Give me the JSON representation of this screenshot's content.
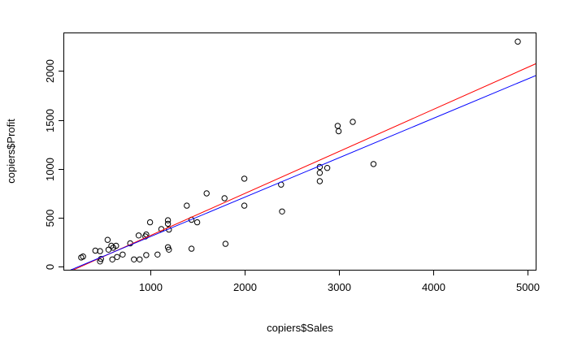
{
  "chart_data": {
    "type": "scatter",
    "title": "",
    "xlabel": "copiers$Sales",
    "ylabel": "copiers$Profit",
    "xlim": [
      90,
      5090
    ],
    "ylim": [
      -30,
      2385
    ],
    "x_ticks": [
      1000,
      2000,
      3000,
      4000,
      5000
    ],
    "y_ticks": [
      0,
      500,
      1000,
      1500,
      2000
    ],
    "x_tick_labels": [
      "1000",
      "2000",
      "3000",
      "4000",
      "5000"
    ],
    "y_tick_labels": [
      "0",
      "500",
      "1000",
      "1500",
      "2000"
    ],
    "grid": false,
    "series": [
      {
        "points": [
          [
            270,
            95
          ],
          [
            290,
            105
          ],
          [
            420,
            165
          ],
          [
            470,
            160
          ],
          [
            470,
            55
          ],
          [
            480,
            80
          ],
          [
            550,
            275
          ],
          [
            560,
            175
          ],
          [
            590,
            215
          ],
          [
            600,
            75
          ],
          [
            610,
            195
          ],
          [
            640,
            215
          ],
          [
            650,
            100
          ],
          [
            710,
            125
          ],
          [
            790,
            240
          ],
          [
            830,
            75
          ],
          [
            880,
            320
          ],
          [
            890,
            75
          ],
          [
            950,
            310
          ],
          [
            960,
            330
          ],
          [
            960,
            120
          ],
          [
            1000,
            455
          ],
          [
            1080,
            125
          ],
          [
            1120,
            385
          ],
          [
            1190,
            440
          ],
          [
            1190,
            475
          ],
          [
            1190,
            200
          ],
          [
            1200,
            380
          ],
          [
            1200,
            175
          ],
          [
            1390,
            625
          ],
          [
            1440,
            480
          ],
          [
            1440,
            185
          ],
          [
            1500,
            455
          ],
          [
            1600,
            750
          ],
          [
            1790,
            700
          ],
          [
            1800,
            235
          ],
          [
            2000,
            900
          ],
          [
            2000,
            625
          ],
          [
            2390,
            840
          ],
          [
            2400,
            565
          ],
          [
            2800,
            1020
          ],
          [
            2800,
            960
          ],
          [
            2800,
            875
          ],
          [
            2880,
            1010
          ],
          [
            2990,
            1440
          ],
          [
            3000,
            1385
          ],
          [
            3150,
            1480
          ],
          [
            3370,
            1050
          ],
          [
            4900,
            2300
          ]
        ]
      }
    ],
    "lines": [
      {
        "color": "#ff0000",
        "intercept": -112,
        "slope": 0.4294
      },
      {
        "color": "#0000ff",
        "intercept": -96,
        "slope": 0.4026
      }
    ]
  }
}
